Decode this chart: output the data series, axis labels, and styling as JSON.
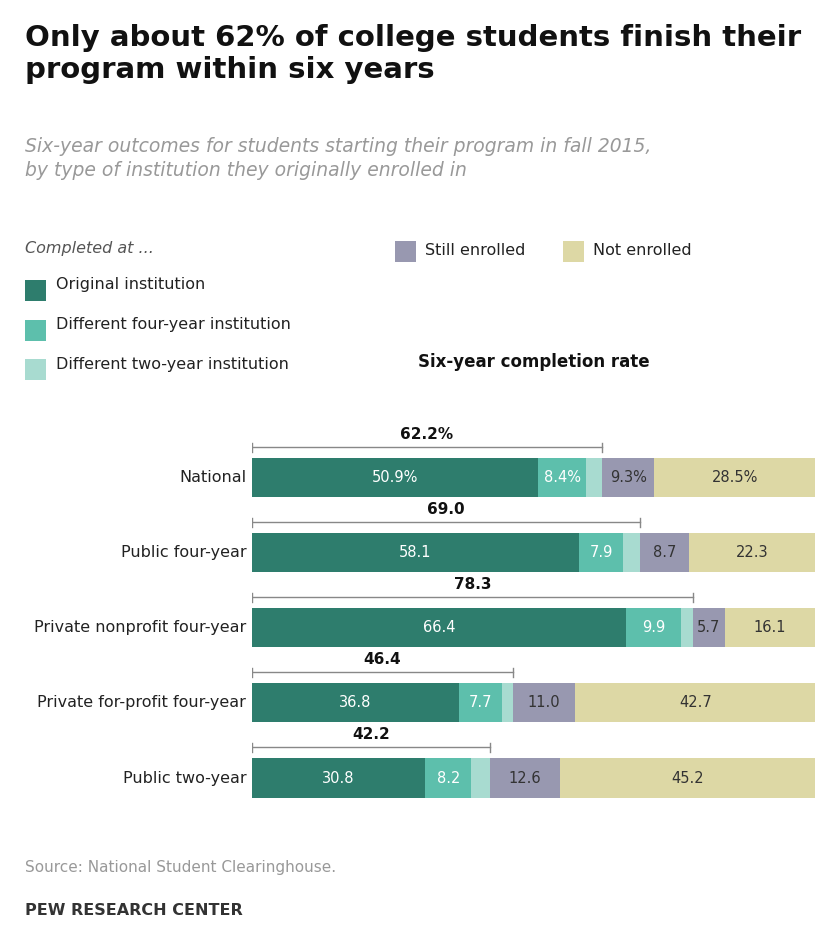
{
  "title": "Only about 62% of college students finish their\nprogram within six years",
  "subtitle": "Six-year outcomes for students starting their program in fall 2015,\nby type of institution they originally enrolled in",
  "section_label": "Six-year completion rate",
  "source": "Source: National Student Clearinghouse.",
  "footer": "PEW RESEARCH CENTER",
  "categories": [
    "National",
    "Public four-year",
    "Private nonprofit four-year",
    "Private for-profit four-year",
    "Public two-year"
  ],
  "completion_rates": [
    62.2,
    69.0,
    78.3,
    46.4,
    42.2
  ],
  "completion_rate_labels": [
    "62.2%",
    "69.0",
    "78.3",
    "46.4",
    "42.2"
  ],
  "data": [
    [
      50.9,
      8.4,
      2.9,
      9.3,
      28.5
    ],
    [
      58.1,
      7.9,
      3.0,
      8.7,
      22.3
    ],
    [
      66.4,
      9.9,
      2.0,
      5.7,
      16.1
    ],
    [
      36.8,
      7.7,
      1.9,
      11.0,
      42.7
    ],
    [
      30.8,
      8.2,
      3.2,
      12.6,
      45.2
    ]
  ],
  "bar_labels": [
    [
      "50.9%",
      "8.4%",
      "",
      "9.3%",
      "28.5%"
    ],
    [
      "58.1",
      "7.9",
      "",
      "8.7",
      "22.3"
    ],
    [
      "66.4",
      "9.9",
      "",
      "5.7",
      "16.1"
    ],
    [
      "36.8",
      "7.7",
      "",
      "11.0",
      "42.7"
    ],
    [
      "30.8",
      "8.2",
      "",
      "12.6",
      "45.2"
    ]
  ],
  "colors": [
    "#2e7d6d",
    "#5dbfac",
    "#a8dbd0",
    "#9898b0",
    "#ddd8a5"
  ],
  "text_colors": [
    "white",
    "white",
    "white",
    "#333333",
    "#333333"
  ],
  "legend_labels_left": [
    "Original institution",
    "Different four-year institution",
    "Different two-year institution"
  ],
  "legend_colors_left": [
    "#2e7d6d",
    "#5dbfac",
    "#a8dbd0"
  ],
  "legend_labels_right": [
    "Still enrolled",
    "Not enrolled"
  ],
  "legend_colors_right": [
    "#9898b0",
    "#ddd8a5"
  ],
  "background_color": "#ffffff",
  "bar_height": 0.52
}
